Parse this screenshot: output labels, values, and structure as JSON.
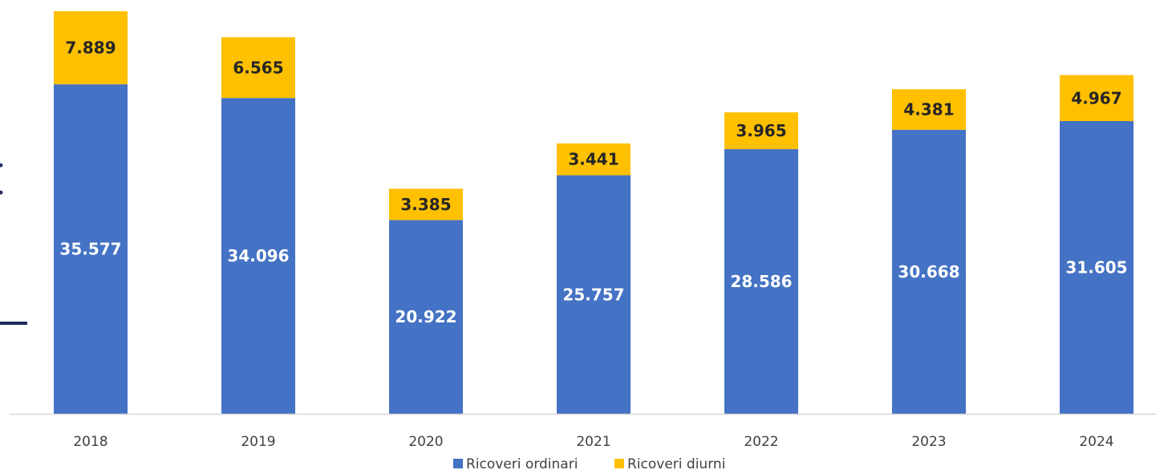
{
  "chart_data": {
    "type": "bar",
    "stacked": true,
    "categories": [
      "2018",
      "2019",
      "2020",
      "2021",
      "2022",
      "2023",
      "2024"
    ],
    "series": [
      {
        "name": "Ricoveri ordinari",
        "color": "#4472C4",
        "label_color": "#FFFFFF",
        "values": [
          35577,
          34096,
          20922,
          25757,
          28586,
          30668,
          31605
        ],
        "labels": [
          "35.577",
          "34.096",
          "20.922",
          "25.757",
          "28.586",
          "30.668",
          "31.605"
        ]
      },
      {
        "name": "Ricoveri diurni",
        "color": "#FFC000",
        "label_color": "#262626",
        "values": [
          7889,
          6565,
          3385,
          3441,
          3965,
          4381,
          4967
        ],
        "labels": [
          "7.889",
          "6.565",
          "3.385",
          "3.441",
          "3.965",
          "4.381",
          "4.967"
        ]
      }
    ],
    "title": "",
    "xlabel": "",
    "ylabel": "",
    "ylim": [
      0,
      43466
    ],
    "legend": "bottom",
    "grid": false
  }
}
